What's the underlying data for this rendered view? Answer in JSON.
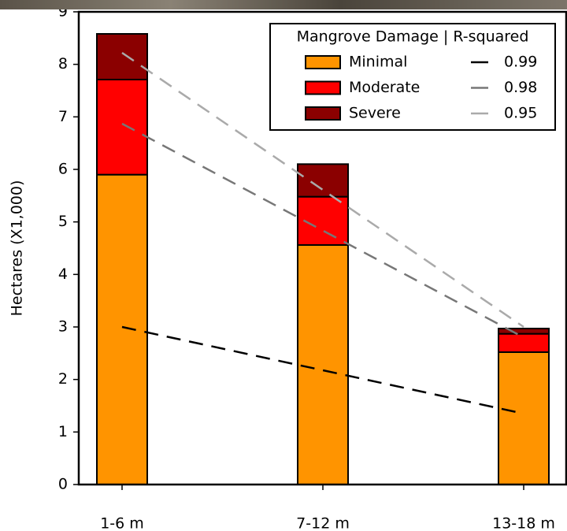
{
  "chart_data": {
    "type": "stacked-bar",
    "ylabel": "Hectares (X1,000)",
    "categories": [
      "1-6 m",
      "7-12 m",
      "13-18 m"
    ],
    "series": [
      {
        "name": "Minimal",
        "color": "#ff9400",
        "values": [
          5.9,
          4.56,
          2.52
        ]
      },
      {
        "name": "Moderate",
        "color": "#ff0000",
        "values": [
          1.81,
          0.92,
          0.35
        ]
      },
      {
        "name": "Severe",
        "color": "#8b0000",
        "values": [
          0.87,
          0.62,
          0.1
        ]
      }
    ],
    "legend_title": "Mangrove Damage | R-squared",
    "trend_lines": [
      {
        "label": "0.99",
        "color": "#000000",
        "values": [
          3.0,
          1.35
        ]
      },
      {
        "label": "0.98",
        "color": "#777777",
        "values": [
          6.87,
          2.8
        ]
      },
      {
        "label": "0.95",
        "color": "#aaaaaa",
        "values": [
          8.22,
          3.0
        ]
      }
    ],
    "ylim": [
      0,
      9
    ],
    "yticks": [
      0,
      1,
      2,
      3,
      4,
      5,
      6,
      7,
      8,
      9
    ]
  }
}
